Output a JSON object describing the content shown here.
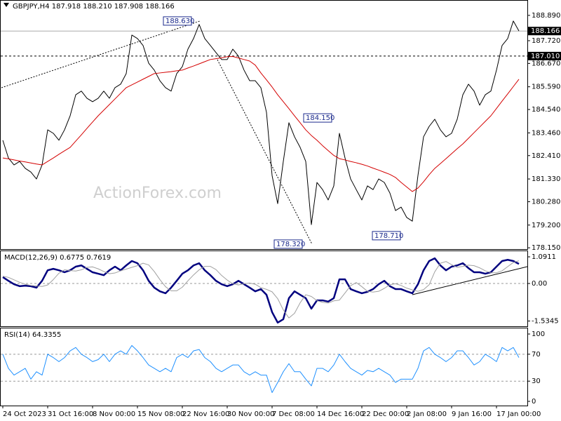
{
  "chart_data": [
    {
      "type": "line",
      "title": "GBPJPY,H4  187.918 188.210 187.908 188.166",
      "watermark": "ActionForex.com",
      "categories": [
        "24 Oct 2023",
        null,
        null,
        null,
        null,
        null,
        null,
        null,
        "31 Oct 16:00",
        null,
        null,
        null,
        null,
        null,
        null,
        null,
        "8 Nov 00:00",
        null,
        null,
        null,
        null,
        null,
        null,
        null,
        "15 Nov 08:00",
        null,
        null,
        null,
        null,
        null,
        null,
        null,
        "22 Nov 16:00",
        null,
        null,
        null,
        null,
        null,
        null,
        null,
        "30 Nov 00:00",
        null,
        null,
        null,
        null,
        null,
        null,
        null,
        "7 Dec 08:00",
        null,
        null,
        null,
        null,
        null,
        null,
        null,
        "14 Dec 16:00",
        null,
        null,
        null,
        null,
        null,
        null,
        null,
        "22 Dec 00:00",
        null,
        null,
        null,
        null,
        null,
        null,
        null,
        "2 Jan 08:00",
        null,
        null,
        null,
        null,
        null,
        null,
        null,
        "9 Jan 16:00",
        null,
        null,
        null,
        null,
        null,
        null,
        null,
        "17 Jan 00:00",
        null,
        null,
        null,
        null
      ],
      "series": [
        {
          "color": "#000000",
          "values": [
            183.12,
            182.3,
            181.98,
            182.14,
            181.82,
            181.65,
            181.33,
            181.98,
            183.6,
            183.44,
            183.12,
            183.6,
            184.25,
            185.22,
            185.39,
            185.06,
            184.9,
            185.06,
            185.39,
            185.06,
            185.55,
            185.71,
            186.2,
            187.98,
            187.82,
            187.5,
            186.68,
            186.36,
            185.87,
            185.55,
            185.39,
            186.2,
            186.52,
            187.33,
            187.82,
            188.47,
            187.82,
            187.5,
            187.17,
            186.85,
            186.85,
            187.33,
            187.01,
            186.36,
            185.87,
            185.87,
            185.55,
            184.41,
            181.49,
            180.19,
            182.14,
            183.93,
            183.28,
            182.79,
            182.14,
            179.22,
            181.17,
            180.84,
            180.36,
            181.01,
            183.44,
            182.3,
            181.33,
            180.84,
            180.36,
            181.01,
            180.84,
            181.33,
            181.17,
            180.68,
            179.87,
            180.03,
            179.55,
            179.38,
            181.49,
            183.28,
            183.76,
            184.09,
            183.6,
            183.28,
            183.44,
            184.09,
            185.22,
            185.71,
            185.39,
            184.74,
            185.22,
            185.39,
            186.36,
            187.5,
            187.82,
            188.63,
            188.17
          ]
        },
        {
          "color": "#d40000",
          "values": [
            182.3,
            182.26,
            182.21,
            182.16,
            182.12,
            182.07,
            182.02,
            181.98,
            182.14,
            182.3,
            182.47,
            182.63,
            182.79,
            183.08,
            183.37,
            183.67,
            183.96,
            184.25,
            184.51,
            184.77,
            185.03,
            185.29,
            185.55,
            185.68,
            185.81,
            185.94,
            186.07,
            186.2,
            186.23,
            186.26,
            186.29,
            186.33,
            186.36,
            186.46,
            186.55,
            186.65,
            186.75,
            186.85,
            186.89,
            186.93,
            186.98,
            186.99,
            186.92,
            186.85,
            186.78,
            186.59,
            186.23,
            185.91,
            185.58,
            185.22,
            184.9,
            184.58,
            184.25,
            183.93,
            183.6,
            183.34,
            183.12,
            182.87,
            182.64,
            182.42,
            182.27,
            182.21,
            182.14,
            182.08,
            182.01,
            181.93,
            181.83,
            181.74,
            181.64,
            181.54,
            181.4,
            181.17,
            180.96,
            180.75,
            180.91,
            181.2,
            181.53,
            181.82,
            182.04,
            182.27,
            182.5,
            182.73,
            182.95,
            183.21,
            183.47,
            183.73,
            183.99,
            184.25,
            184.59,
            184.93,
            185.26,
            185.6,
            185.94
          ]
        }
      ],
      "ylim": [
        178.09,
        189.6
      ],
      "yticks": [
        {
          "value": 188.89,
          "label": "188.890"
        },
        {
          "value": 187.72,
          "label": "187.720"
        },
        {
          "value": 186.67,
          "label": "186.670"
        },
        {
          "value": 185.59,
          "label": "185.590"
        },
        {
          "value": 184.54,
          "label": "184.540"
        },
        {
          "value": 183.46,
          "label": "183.460"
        },
        {
          "value": 182.41,
          "label": "182.410"
        },
        {
          "value": 181.33,
          "label": "181.330"
        },
        {
          "value": 180.28,
          "label": "180.280"
        },
        {
          "value": 179.2,
          "label": "179.200"
        },
        {
          "value": 178.15,
          "label": "178.150"
        }
      ],
      "price_lines": [
        {
          "value": 188.166,
          "style": "solid"
        },
        {
          "value": 187.01,
          "label": "187.010",
          "style": "dashed"
        }
      ],
      "annotations": [
        {
          "value": 188.63,
          "label": "188.630"
        },
        {
          "value": 184.15,
          "label": "184.150"
        },
        {
          "value": 178.32,
          "label": "178.320"
        },
        {
          "value": 178.71,
          "label": "178.710"
        }
      ]
    },
    {
      "type": "line",
      "title": "MACD(12,26,9) 0.6775 0.7619",
      "series": [
        {
          "color": "#00007f",
          "width": 2.5,
          "values": [
            0.26,
            0.11,
            -0.03,
            -0.11,
            -0.09,
            -0.11,
            -0.17,
            0.11,
            0.54,
            0.6,
            0.54,
            0.46,
            0.54,
            0.69,
            0.74,
            0.6,
            0.46,
            0.4,
            0.34,
            0.54,
            0.69,
            0.54,
            0.74,
            0.92,
            0.83,
            0.54,
            0.11,
            -0.17,
            -0.32,
            -0.4,
            -0.17,
            0.11,
            0.4,
            0.54,
            0.74,
            0.83,
            0.54,
            0.34,
            0.11,
            -0.03,
            -0.11,
            -0.03,
            0.11,
            -0.03,
            -0.17,
            -0.32,
            -0.23,
            -0.46,
            -1.17,
            -1.6,
            -1.46,
            -0.6,
            -0.32,
            -0.46,
            -0.6,
            -1.03,
            -0.69,
            -0.69,
            -0.74,
            -0.6,
            0.17,
            0.17,
            -0.23,
            -0.32,
            -0.4,
            -0.34,
            -0.23,
            -0.03,
            0.11,
            -0.11,
            -0.23,
            -0.23,
            -0.32,
            -0.4,
            -0.03,
            0.54,
            0.92,
            1.03,
            0.74,
            0.54,
            0.69,
            0.74,
            0.83,
            0.63,
            0.46,
            0.46,
            0.4,
            0.46,
            0.69,
            0.92,
            0.97,
            0.92,
            0.8
          ]
        },
        {
          "color": "#a0a0a0",
          "width": 1,
          "values": [
            0.3,
            0.25,
            0.15,
            0.05,
            -0.03,
            -0.08,
            -0.1,
            -0.12,
            -0.06,
            0.16,
            0.42,
            0.56,
            0.53,
            0.51,
            0.56,
            0.66,
            0.68,
            0.6,
            0.49,
            0.4,
            0.43,
            0.52,
            0.59,
            0.66,
            0.73,
            0.83,
            0.76,
            0.49,
            0.16,
            -0.13,
            -0.3,
            -0.3,
            -0.15,
            0.11,
            0.35,
            0.56,
            0.7,
            0.7,
            0.57,
            0.33,
            0.14,
            -0.01,
            -0.06,
            -0.01,
            0.02,
            -0.03,
            -0.17,
            -0.24,
            -0.34,
            -0.62,
            -1.08,
            -1.41,
            -1.22,
            -0.79,
            -0.46,
            -0.53,
            -0.7,
            -0.77,
            -0.8,
            -0.71,
            -0.68,
            -0.39,
            -0.09,
            0.04,
            -0.13,
            -0.32,
            -0.35,
            -0.32,
            -0.2,
            -0.05,
            -0.01,
            -0.08,
            -0.19,
            -0.26,
            -0.32,
            -0.25,
            -0.05,
            0.48,
            0.83,
            0.9,
            0.77,
            0.66,
            0.7,
            0.75,
            0.73,
            0.64,
            0.52,
            0.44,
            0.44,
            0.52,
            0.69,
            0.86,
            0.93
          ]
        }
      ],
      "ylim": [
        -1.75,
        1.35
      ],
      "yticks": [
        1.0911,
        {
          "value": 0,
          "label": "0.00"
        },
        -1.5345
      ],
      "levels": [
        0
      ]
    },
    {
      "type": "line",
      "title": "RSI(14) 64.3355",
      "series": [
        {
          "color": "#1e90ff",
          "width": 1,
          "values": [
            70,
            49,
            39,
            44,
            49,
            33,
            44,
            39,
            70,
            65,
            59,
            65,
            75,
            80,
            70,
            65,
            59,
            62,
            70,
            59,
            70,
            75,
            70,
            83,
            75,
            65,
            54,
            49,
            44,
            49,
            44,
            65,
            70,
            65,
            75,
            77,
            65,
            59,
            49,
            44,
            49,
            54,
            54,
            44,
            39,
            44,
            39,
            39,
            13,
            28,
            44,
            56,
            44,
            44,
            33,
            23,
            49,
            49,
            44,
            54,
            70,
            59,
            49,
            44,
            39,
            46,
            44,
            49,
            44,
            39,
            28,
            33,
            33,
            33,
            49,
            75,
            80,
            70,
            65,
            59,
            65,
            75,
            75,
            65,
            54,
            59,
            70,
            65,
            59,
            80,
            75,
            80,
            65
          ]
        }
      ],
      "ylim": [
        -6.25,
        109.4
      ],
      "yticks": [
        100,
        70,
        30,
        0
      ],
      "levels": [
        70,
        30
      ]
    }
  ]
}
